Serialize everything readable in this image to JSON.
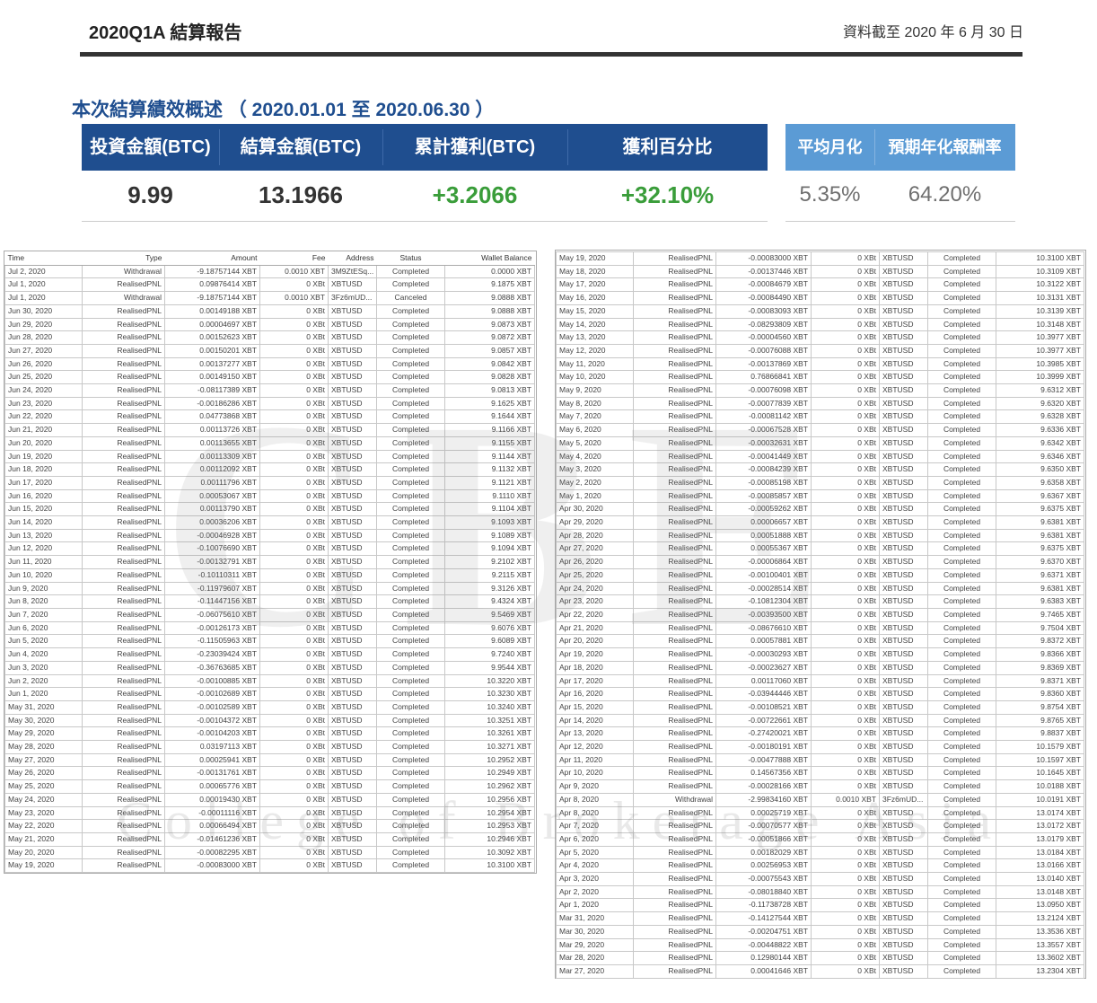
{
  "header": {
    "title": "2020Q1A 結算報告",
    "as_of": "資料截至 2020 年 6 月 30 日",
    "summary_title": "本次結算績效概述 （ 2020.01.01 至 2020.06.30 ）"
  },
  "kpis": [
    {
      "label": "投資金額(BTC)",
      "value": "9.99"
    },
    {
      "label": "結算金額(BTC)",
      "value": "13.1966"
    },
    {
      "label": "累計獲利(BTC)",
      "value": "+3.2066"
    },
    {
      "label": "獲利百分比",
      "value": "+32.10%"
    },
    {
      "label": "平均月化",
      "value": "5.35%"
    },
    {
      "label": "預期年化報酬率",
      "value": "64.20%"
    }
  ],
  "colors": {
    "primary": "#1f4e8f",
    "secondary": "#5b9bd5",
    "positive": "#3a9d3a"
  },
  "watermark": {
    "logo": "CBE",
    "text": "College of Brokerage Asia"
  },
  "ledger_columns": [
    "Time",
    "Type",
    "Amount",
    "Fee",
    "Address",
    "Status",
    "Wallet Balance"
  ],
  "ledger_left": [
    [
      "Jul 2, 2020",
      "Withdrawal",
      "-9.18757144 XBT",
      "0.0010 XBT",
      "3M9ZtESq...",
      "Completed",
      "0.0000 XBT"
    ],
    [
      "Jul 1, 2020",
      "RealisedPNL",
      "0.09876414 XBT",
      "0 XBt",
      "XBTUSD",
      "Completed",
      "9.1875 XBT"
    ],
    [
      "Jul 1, 2020",
      "Withdrawal",
      "-9.18757144 XBT",
      "0.0010 XBT",
      "3Fz6mUD...",
      "Canceled",
      "9.0888 XBT"
    ],
    [
      "Jun 30, 2020",
      "RealisedPNL",
      "0.00149188 XBT",
      "0 XBt",
      "XBTUSD",
      "Completed",
      "9.0888 XBT"
    ],
    [
      "Jun 29, 2020",
      "RealisedPNL",
      "0.00004697 XBT",
      "0 XBt",
      "XBTUSD",
      "Completed",
      "9.0873 XBT"
    ],
    [
      "Jun 28, 2020",
      "RealisedPNL",
      "0.00152623 XBT",
      "0 XBt",
      "XBTUSD",
      "Completed",
      "9.0872 XBT"
    ],
    [
      "Jun 27, 2020",
      "RealisedPNL",
      "0.00150201 XBT",
      "0 XBt",
      "XBTUSD",
      "Completed",
      "9.0857 XBT"
    ],
    [
      "Jun 26, 2020",
      "RealisedPNL",
      "0.00137277 XBT",
      "0 XBt",
      "XBTUSD",
      "Completed",
      "9.0842 XBT"
    ],
    [
      "Jun 25, 2020",
      "RealisedPNL",
      "0.00149150 XBT",
      "0 XBt",
      "XBTUSD",
      "Completed",
      "9.0828 XBT"
    ],
    [
      "Jun 24, 2020",
      "RealisedPNL",
      "-0.08117389 XBT",
      "0 XBt",
      "XBTUSD",
      "Completed",
      "9.0813 XBT"
    ],
    [
      "Jun 23, 2020",
      "RealisedPNL",
      "-0.00186286 XBT",
      "0 XBt",
      "XBTUSD",
      "Completed",
      "9.1625 XBT"
    ],
    [
      "Jun 22, 2020",
      "RealisedPNL",
      "0.04773868 XBT",
      "0 XBt",
      "XBTUSD",
      "Completed",
      "9.1644 XBT"
    ],
    [
      "Jun 21, 2020",
      "RealisedPNL",
      "0.00113726 XBT",
      "0 XBt",
      "XBTUSD",
      "Completed",
      "9.1166 XBT"
    ],
    [
      "Jun 20, 2020",
      "RealisedPNL",
      "0.00113655 XBT",
      "0 XBt",
      "XBTUSD",
      "Completed",
      "9.1155 XBT"
    ],
    [
      "Jun 19, 2020",
      "RealisedPNL",
      "0.00113309 XBT",
      "0 XBt",
      "XBTUSD",
      "Completed",
      "9.1144 XBT"
    ],
    [
      "Jun 18, 2020",
      "RealisedPNL",
      "0.00112092 XBT",
      "0 XBt",
      "XBTUSD",
      "Completed",
      "9.1132 XBT"
    ],
    [
      "Jun 17, 2020",
      "RealisedPNL",
      "0.00111796 XBT",
      "0 XBt",
      "XBTUSD",
      "Completed",
      "9.1121 XBT"
    ],
    [
      "Jun 16, 2020",
      "RealisedPNL",
      "0.00053067 XBT",
      "0 XBt",
      "XBTUSD",
      "Completed",
      "9.1110 XBT"
    ],
    [
      "Jun 15, 2020",
      "RealisedPNL",
      "0.00113790 XBT",
      "0 XBt",
      "XBTUSD",
      "Completed",
      "9.1104 XBT"
    ],
    [
      "Jun 14, 2020",
      "RealisedPNL",
      "0.00036206 XBT",
      "0 XBt",
      "XBTUSD",
      "Completed",
      "9.1093 XBT"
    ],
    [
      "Jun 13, 2020",
      "RealisedPNL",
      "-0.00046928 XBT",
      "0 XBt",
      "XBTUSD",
      "Completed",
      "9.1089 XBT"
    ],
    [
      "Jun 12, 2020",
      "RealisedPNL",
      "-0.10076690 XBT",
      "0 XBt",
      "XBTUSD",
      "Completed",
      "9.1094 XBT"
    ],
    [
      "Jun 11, 2020",
      "RealisedPNL",
      "-0.00132791 XBT",
      "0 XBt",
      "XBTUSD",
      "Completed",
      "9.2102 XBT"
    ],
    [
      "Jun 10, 2020",
      "RealisedPNL",
      "-0.10110311 XBT",
      "0 XBt",
      "XBTUSD",
      "Completed",
      "9.2115 XBT"
    ],
    [
      "Jun 9, 2020",
      "RealisedPNL",
      "-0.11979607 XBT",
      "0 XBt",
      "XBTUSD",
      "Completed",
      "9.3126 XBT"
    ],
    [
      "Jun 8, 2020",
      "RealisedPNL",
      "-0.11447156 XBT",
      "0 XBt",
      "XBTUSD",
      "Completed",
      "9.4324 XBT"
    ],
    [
      "Jun 7, 2020",
      "RealisedPNL",
      "-0.06075610 XBT",
      "0 XBt",
      "XBTUSD",
      "Completed",
      "9.5469 XBT"
    ],
    [
      "Jun 6, 2020",
      "RealisedPNL",
      "-0.00126173 XBT",
      "0 XBt",
      "XBTUSD",
      "Completed",
      "9.6076 XBT"
    ],
    [
      "Jun 5, 2020",
      "RealisedPNL",
      "-0.11505963 XBT",
      "0 XBt",
      "XBTUSD",
      "Completed",
      "9.6089 XBT"
    ],
    [
      "Jun 4, 2020",
      "RealisedPNL",
      "-0.23039424 XBT",
      "0 XBt",
      "XBTUSD",
      "Completed",
      "9.7240 XBT"
    ],
    [
      "Jun 3, 2020",
      "RealisedPNL",
      "-0.36763685 XBT",
      "0 XBt",
      "XBTUSD",
      "Completed",
      "9.9544 XBT"
    ],
    [
      "Jun 2, 2020",
      "RealisedPNL",
      "-0.00100885 XBT",
      "0 XBt",
      "XBTUSD",
      "Completed",
      "10.3220 XBT"
    ],
    [
      "Jun 1, 2020",
      "RealisedPNL",
      "-0.00102689 XBT",
      "0 XBt",
      "XBTUSD",
      "Completed",
      "10.3230 XBT"
    ],
    [
      "May 31, 2020",
      "RealisedPNL",
      "-0.00102589 XBT",
      "0 XBt",
      "XBTUSD",
      "Completed",
      "10.3240 XBT"
    ],
    [
      "May 30, 2020",
      "RealisedPNL",
      "-0.00104372 XBT",
      "0 XBt",
      "XBTUSD",
      "Completed",
      "10.3251 XBT"
    ],
    [
      "May 29, 2020",
      "RealisedPNL",
      "-0.00104203 XBT",
      "0 XBt",
      "XBTUSD",
      "Completed",
      "10.3261 XBT"
    ],
    [
      "May 28, 2020",
      "RealisedPNL",
      "0.03197113 XBT",
      "0 XBt",
      "XBTUSD",
      "Completed",
      "10.3271 XBT"
    ],
    [
      "May 27, 2020",
      "RealisedPNL",
      "0.00025941 XBT",
      "0 XBt",
      "XBTUSD",
      "Completed",
      "10.2952 XBT"
    ],
    [
      "May 26, 2020",
      "RealisedPNL",
      "-0.00131761 XBT",
      "0 XBt",
      "XBTUSD",
      "Completed",
      "10.2949 XBT"
    ],
    [
      "May 25, 2020",
      "RealisedPNL",
      "0.00065776 XBT",
      "0 XBt",
      "XBTUSD",
      "Completed",
      "10.2962 XBT"
    ],
    [
      "May 24, 2020",
      "RealisedPNL",
      "0.00019430 XBT",
      "0 XBt",
      "XBTUSD",
      "Completed",
      "10.2956 XBT"
    ],
    [
      "May 23, 2020",
      "RealisedPNL",
      "-0.00011116 XBT",
      "0 XBt",
      "XBTUSD",
      "Completed",
      "10.2954 XBT"
    ],
    [
      "May 22, 2020",
      "RealisedPNL",
      "0.00066494 XBT",
      "0 XBt",
      "XBTUSD",
      "Completed",
      "10.2953 XBT"
    ],
    [
      "May 21, 2020",
      "RealisedPNL",
      "-0.01461236 XBT",
      "0 XBt",
      "XBTUSD",
      "Completed",
      "10.2946 XBT"
    ],
    [
      "May 20, 2020",
      "RealisedPNL",
      "-0.00082295 XBT",
      "0 XBt",
      "XBTUSD",
      "Completed",
      "10.3092 XBT"
    ],
    [
      "May 19, 2020",
      "RealisedPNL",
      "-0.00083000 XBT",
      "0 XBt",
      "XBTUSD",
      "Completed",
      "10.3100 XBT"
    ]
  ],
  "ledger_right": [
    [
      "May 19, 2020",
      "RealisedPNL",
      "-0.00083000 XBT",
      "0 XBt",
      "XBTUSD",
      "Completed",
      "10.3100 XBT"
    ],
    [
      "May 18, 2020",
      "RealisedPNL",
      "-0.00137446 XBT",
      "0 XBt",
      "XBTUSD",
      "Completed",
      "10.3109 XBT"
    ],
    [
      "May 17, 2020",
      "RealisedPNL",
      "-0.00084679 XBT",
      "0 XBt",
      "XBTUSD",
      "Completed",
      "10.3122 XBT"
    ],
    [
      "May 16, 2020",
      "RealisedPNL",
      "-0.00084490 XBT",
      "0 XBt",
      "XBTUSD",
      "Completed",
      "10.3131 XBT"
    ],
    [
      "May 15, 2020",
      "RealisedPNL",
      "-0.00083093 XBT",
      "0 XBt",
      "XBTUSD",
      "Completed",
      "10.3139 XBT"
    ],
    [
      "May 14, 2020",
      "RealisedPNL",
      "-0.08293809 XBT",
      "0 XBt",
      "XBTUSD",
      "Completed",
      "10.3148 XBT"
    ],
    [
      "May 13, 2020",
      "RealisedPNL",
      "-0.00004560 XBT",
      "0 XBt",
      "XBTUSD",
      "Completed",
      "10.3977 XBT"
    ],
    [
      "May 12, 2020",
      "RealisedPNL",
      "-0.00076088 XBT",
      "0 XBt",
      "XBTUSD",
      "Completed",
      "10.3977 XBT"
    ],
    [
      "May 11, 2020",
      "RealisedPNL",
      "-0.00137869 XBT",
      "0 XBt",
      "XBTUSD",
      "Completed",
      "10.3985 XBT"
    ],
    [
      "May 10, 2020",
      "RealisedPNL",
      "0.76866841 XBT",
      "0 XBt",
      "XBTUSD",
      "Completed",
      "10.3999 XBT"
    ],
    [
      "May 9, 2020",
      "RealisedPNL",
      "-0.00076098 XBT",
      "0 XBt",
      "XBTUSD",
      "Completed",
      "9.6312 XBT"
    ],
    [
      "May 8, 2020",
      "RealisedPNL",
      "-0.00077839 XBT",
      "0 XBt",
      "XBTUSD",
      "Completed",
      "9.6320 XBT"
    ],
    [
      "May 7, 2020",
      "RealisedPNL",
      "-0.00081142 XBT",
      "0 XBt",
      "XBTUSD",
      "Completed",
      "9.6328 XBT"
    ],
    [
      "May 6, 2020",
      "RealisedPNL",
      "-0.00067528 XBT",
      "0 XBt",
      "XBTUSD",
      "Completed",
      "9.6336 XBT"
    ],
    [
      "May 5, 2020",
      "RealisedPNL",
      "-0.00032631 XBT",
      "0 XBt",
      "XBTUSD",
      "Completed",
      "9.6342 XBT"
    ],
    [
      "May 4, 2020",
      "RealisedPNL",
      "-0.00041449 XBT",
      "0 XBt",
      "XBTUSD",
      "Completed",
      "9.6346 XBT"
    ],
    [
      "May 3, 2020",
      "RealisedPNL",
      "-0.00084239 XBT",
      "0 XBt",
      "XBTUSD",
      "Completed",
      "9.6350 XBT"
    ],
    [
      "May 2, 2020",
      "RealisedPNL",
      "-0.00085198 XBT",
      "0 XBt",
      "XBTUSD",
      "Completed",
      "9.6358 XBT"
    ],
    [
      "May 1, 2020",
      "RealisedPNL",
      "-0.00085857 XBT",
      "0 XBt",
      "XBTUSD",
      "Completed",
      "9.6367 XBT"
    ],
    [
      "Apr 30, 2020",
      "RealisedPNL",
      "-0.00059262 XBT",
      "0 XBt",
      "XBTUSD",
      "Completed",
      "9.6375 XBT"
    ],
    [
      "Apr 29, 2020",
      "RealisedPNL",
      "0.00006657 XBT",
      "0 XBt",
      "XBTUSD",
      "Completed",
      "9.6381 XBT"
    ],
    [
      "Apr 28, 2020",
      "RealisedPNL",
      "0.00051888 XBT",
      "0 XBt",
      "XBTUSD",
      "Completed",
      "9.6381 XBT"
    ],
    [
      "Apr 27, 2020",
      "RealisedPNL",
      "0.00055367 XBT",
      "0 XBt",
      "XBTUSD",
      "Completed",
      "9.6375 XBT"
    ],
    [
      "Apr 26, 2020",
      "RealisedPNL",
      "-0.00006864 XBT",
      "0 XBt",
      "XBTUSD",
      "Completed",
      "9.6370 XBT"
    ],
    [
      "Apr 25, 2020",
      "RealisedPNL",
      "-0.00100401 XBT",
      "0 XBt",
      "XBTUSD",
      "Completed",
      "9.6371 XBT"
    ],
    [
      "Apr 24, 2020",
      "RealisedPNL",
      "-0.00028514 XBT",
      "0 XBt",
      "XBTUSD",
      "Completed",
      "9.6381 XBT"
    ],
    [
      "Apr 23, 2020",
      "RealisedPNL",
      "-0.10812304 XBT",
      "0 XBt",
      "XBTUSD",
      "Completed",
      "9.6383 XBT"
    ],
    [
      "Apr 22, 2020",
      "RealisedPNL",
      "-0.00393500 XBT",
      "0 XBt",
      "XBTUSD",
      "Completed",
      "9.7465 XBT"
    ],
    [
      "Apr 21, 2020",
      "RealisedPNL",
      "-0.08676610 XBT",
      "0 XBt",
      "XBTUSD",
      "Completed",
      "9.7504 XBT"
    ],
    [
      "Apr 20, 2020",
      "RealisedPNL",
      "0.00057881 XBT",
      "0 XBt",
      "XBTUSD",
      "Completed",
      "9.8372 XBT"
    ],
    [
      "Apr 19, 2020",
      "RealisedPNL",
      "-0.00030293 XBT",
      "0 XBt",
      "XBTUSD",
      "Completed",
      "9.8366 XBT"
    ],
    [
      "Apr 18, 2020",
      "RealisedPNL",
      "-0.00023627 XBT",
      "0 XBt",
      "XBTUSD",
      "Completed",
      "9.8369 XBT"
    ],
    [
      "Apr 17, 2020",
      "RealisedPNL",
      "0.00117060 XBT",
      "0 XBt",
      "XBTUSD",
      "Completed",
      "9.8371 XBT"
    ],
    [
      "Apr 16, 2020",
      "RealisedPNL",
      "-0.03944446 XBT",
      "0 XBt",
      "XBTUSD",
      "Completed",
      "9.8360 XBT"
    ],
    [
      "Apr 15, 2020",
      "RealisedPNL",
      "-0.00108521 XBT",
      "0 XBt",
      "XBTUSD",
      "Completed",
      "9.8754 XBT"
    ],
    [
      "Apr 14, 2020",
      "RealisedPNL",
      "-0.00722661 XBT",
      "0 XBt",
      "XBTUSD",
      "Completed",
      "9.8765 XBT"
    ],
    [
      "Apr 13, 2020",
      "RealisedPNL",
      "-0.27420021 XBT",
      "0 XBt",
      "XBTUSD",
      "Completed",
      "9.8837 XBT"
    ],
    [
      "Apr 12, 2020",
      "RealisedPNL",
      "-0.00180191 XBT",
      "0 XBt",
      "XBTUSD",
      "Completed",
      "10.1579 XBT"
    ],
    [
      "Apr 11, 2020",
      "RealisedPNL",
      "-0.00477888 XBT",
      "0 XBt",
      "XBTUSD",
      "Completed",
      "10.1597 XBT"
    ],
    [
      "Apr 10, 2020",
      "RealisedPNL",
      "0.14567356 XBT",
      "0 XBt",
      "XBTUSD",
      "Completed",
      "10.1645 XBT"
    ],
    [
      "Apr 9, 2020",
      "RealisedPNL",
      "-0.00028166 XBT",
      "0 XBt",
      "XBTUSD",
      "Completed",
      "10.0188 XBT"
    ],
    [
      "Apr 8, 2020",
      "Withdrawal",
      "-2.99834160 XBT",
      "0.0010 XBT",
      "3Fz6mUD...",
      "Completed",
      "10.0191 XBT"
    ],
    [
      "Apr 8, 2020",
      "RealisedPNL",
      "0.00025719 XBT",
      "0 XBt",
      "XBTUSD",
      "Completed",
      "13.0174 XBT"
    ],
    [
      "Apr 7, 2020",
      "RealisedPNL",
      "-0.00070577 XBT",
      "0 XBt",
      "XBTUSD",
      "Completed",
      "13.0172 XBT"
    ],
    [
      "Apr 6, 2020",
      "RealisedPNL",
      "-0.00051866 XBT",
      "0 XBt",
      "XBTUSD",
      "Completed",
      "13.0179 XBT"
    ],
    [
      "Apr 5, 2020",
      "RealisedPNL",
      "0.00182029 XBT",
      "0 XBt",
      "XBTUSD",
      "Completed",
      "13.0184 XBT"
    ],
    [
      "Apr 4, 2020",
      "RealisedPNL",
      "0.00256953 XBT",
      "0 XBt",
      "XBTUSD",
      "Completed",
      "13.0166 XBT"
    ],
    [
      "Apr 3, 2020",
      "RealisedPNL",
      "-0.00075543 XBT",
      "0 XBt",
      "XBTUSD",
      "Completed",
      "13.0140 XBT"
    ],
    [
      "Apr 2, 2020",
      "RealisedPNL",
      "-0.08018840 XBT",
      "0 XBt",
      "XBTUSD",
      "Completed",
      "13.0148 XBT"
    ],
    [
      "Apr 1, 2020",
      "RealisedPNL",
      "-0.11738728 XBT",
      "0 XBt",
      "XBTUSD",
      "Completed",
      "13.0950 XBT"
    ],
    [
      "Mar 31, 2020",
      "RealisedPNL",
      "-0.14127544 XBT",
      "0 XBt",
      "XBTUSD",
      "Completed",
      "13.2124 XBT"
    ],
    [
      "Mar 30, 2020",
      "RealisedPNL",
      "-0.00204751 XBT",
      "0 XBt",
      "XBTUSD",
      "Completed",
      "13.3536 XBT"
    ],
    [
      "Mar 29, 2020",
      "RealisedPNL",
      "-0.00448822 XBT",
      "0 XBt",
      "XBTUSD",
      "Completed",
      "13.3557 XBT"
    ],
    [
      "Mar 28, 2020",
      "RealisedPNL",
      "0.12980144 XBT",
      "0 XBt",
      "XBTUSD",
      "Completed",
      "13.3602 XBT"
    ],
    [
      "Mar 27, 2020",
      "RealisedPNL",
      "0.00041646 XBT",
      "0 XBt",
      "XBTUSD",
      "Completed",
      "13.2304 XBT"
    ]
  ]
}
